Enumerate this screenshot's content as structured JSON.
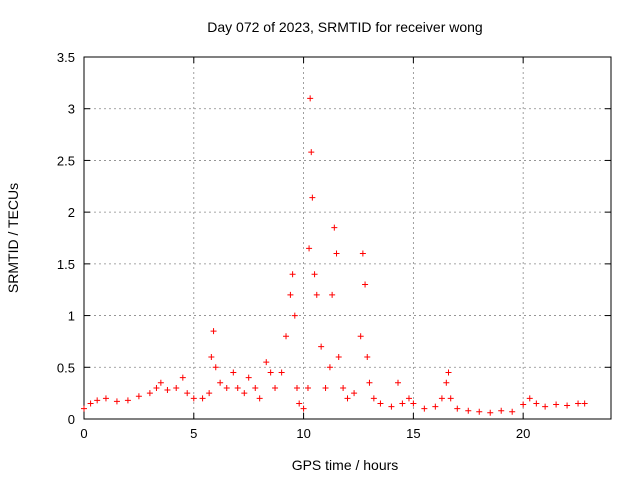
{
  "chart_data": {
    "type": "scatter",
    "title": "Day 072 of 2023, SRMTID for receiver wong",
    "xlabel": "GPS time / hours",
    "ylabel": "SRMTID / TECUs",
    "xlim": [
      0,
      24
    ],
    "ylim": [
      0,
      3.5
    ],
    "xticks": [
      0,
      5,
      10,
      15,
      20
    ],
    "xtick_labels": [
      "0",
      "5",
      "10",
      "15",
      "20"
    ],
    "yticks": [
      0,
      0.5,
      1,
      1.5,
      2,
      2.5,
      3,
      3.5
    ],
    "ytick_labels": [
      "0",
      "0.5",
      "1",
      "1.5",
      "2",
      "2.5",
      "3",
      "3.5"
    ],
    "grid": true,
    "marker": "+",
    "color": "#ff0000",
    "series": [
      {
        "name": "SRMTID",
        "x": [
          0.0,
          0.3,
          0.6,
          1.0,
          1.5,
          2.0,
          2.5,
          3.0,
          3.3,
          3.5,
          3.8,
          4.2,
          4.5,
          4.7,
          5.0,
          5.4,
          5.7,
          5.8,
          5.9,
          6.0,
          6.2,
          6.5,
          6.8,
          7.0,
          7.3,
          7.5,
          7.8,
          8.0,
          8.3,
          8.5,
          8.7,
          9.0,
          9.2,
          9.4,
          9.5,
          9.6,
          9.7,
          9.8,
          10.0,
          10.2,
          10.25,
          10.3,
          10.35,
          10.4,
          10.5,
          10.6,
          10.8,
          11.0,
          11.2,
          11.3,
          11.4,
          11.5,
          11.6,
          11.8,
          12.0,
          12.3,
          12.6,
          12.7,
          12.8,
          12.9,
          13.0,
          13.2,
          13.5,
          14.0,
          14.3,
          14.5,
          14.8,
          15.0,
          15.5,
          16.0,
          16.3,
          16.5,
          16.6,
          16.7,
          17.0,
          17.5,
          18.0,
          18.5,
          19.0,
          19.5,
          20.0,
          20.3,
          20.6,
          21.0,
          21.5,
          22.0,
          22.5,
          22.8
        ],
        "y": [
          0.1,
          0.15,
          0.18,
          0.2,
          0.17,
          0.18,
          0.22,
          0.25,
          0.3,
          0.35,
          0.28,
          0.3,
          0.4,
          0.25,
          0.2,
          0.2,
          0.25,
          0.6,
          0.85,
          0.5,
          0.35,
          0.3,
          0.45,
          0.3,
          0.25,
          0.4,
          0.3,
          0.2,
          0.55,
          0.45,
          0.3,
          0.45,
          0.8,
          1.2,
          1.4,
          1.0,
          0.3,
          0.15,
          0.1,
          0.3,
          1.65,
          3.1,
          2.58,
          2.14,
          1.4,
          1.2,
          0.7,
          0.3,
          0.5,
          1.2,
          1.85,
          1.6,
          0.6,
          0.3,
          0.2,
          0.25,
          0.8,
          1.6,
          1.3,
          0.6,
          0.35,
          0.2,
          0.15,
          0.12,
          0.35,
          0.15,
          0.2,
          0.15,
          0.1,
          0.12,
          0.2,
          0.35,
          0.45,
          0.2,
          0.1,
          0.08,
          0.07,
          0.06,
          0.08,
          0.07,
          0.14,
          0.2,
          0.15,
          0.12,
          0.14,
          0.13,
          0.15,
          0.15
        ]
      }
    ]
  }
}
